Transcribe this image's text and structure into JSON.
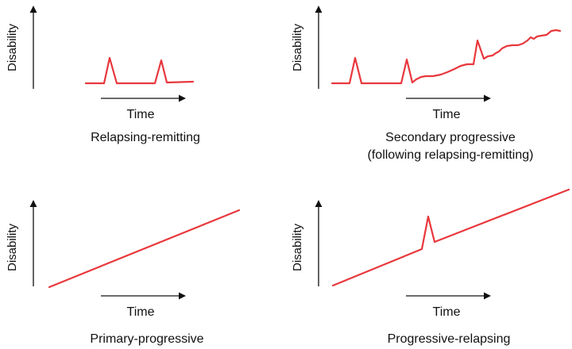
{
  "colors": {
    "curve": "#e8383d",
    "axis": "#111111",
    "background": "#ffffff"
  },
  "panels": [
    {
      "id": "relapsing-remitting",
      "ylabel": "Disability",
      "xlabel": "Time",
      "caption": [
        "Relapsing-remitting"
      ]
    },
    {
      "id": "secondary-progressive",
      "ylabel": "Disability",
      "xlabel": "Time",
      "caption": [
        "Secondary progressive",
        "(following relapsing-remitting)"
      ]
    },
    {
      "id": "primary-progressive",
      "ylabel": "Disability",
      "xlabel": "Time",
      "caption": [
        "Primary-progressive"
      ]
    },
    {
      "id": "progressive-relapsing",
      "ylabel": "Disability",
      "xlabel": "Time",
      "caption": [
        "Progressive-relapsing"
      ]
    }
  ]
}
